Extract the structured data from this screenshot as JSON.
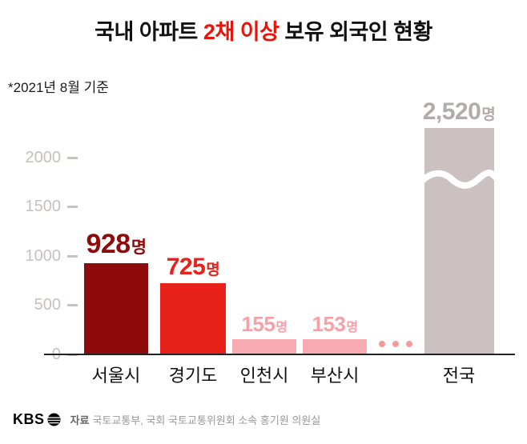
{
  "title": {
    "prefix": "국내 아파트 ",
    "highlight": "2채 이상",
    "suffix": " 보유 외국인 현황"
  },
  "subtitle": "*2021년 8월 기준",
  "colors": {
    "highlight": "#e8140a",
    "bar_colors": [
      "#8e0b0b",
      "#e8211a",
      "#f8abb0",
      "#f8abb0",
      "#cbc1c1"
    ],
    "label_colors": [
      "#8e0b0b",
      "#e8211a",
      "#f7a0a6",
      "#f7a0a6",
      "#b3abab"
    ],
    "axis_label": "#c8bfbf",
    "ellipsis": "#f49b99"
  },
  "chart_data": {
    "type": "bar",
    "title": "국내 아파트 2채 이상 보유 외국인 현황",
    "note": "*2021년 8월 기준",
    "categories": [
      "서울시",
      "경기도",
      "인천시",
      "부산시",
      "전국"
    ],
    "values": [
      928,
      725,
      155,
      153,
      2520
    ],
    "value_labels": [
      "928",
      "725",
      "155",
      "153",
      "2,520"
    ],
    "unit": "명",
    "ylim": [
      0,
      2300
    ],
    "yticks": [
      0,
      500,
      1000,
      1500,
      2000
    ],
    "grid": "off",
    "legend": "none",
    "broken_bar_index": 4,
    "ellipsis_between": [
      3,
      4
    ]
  },
  "footer": {
    "logo": "KBS",
    "source_label": "자료",
    "source_text": "국토교통부, 국회 국토교통위원회 소속 홍기원 의원실"
  }
}
